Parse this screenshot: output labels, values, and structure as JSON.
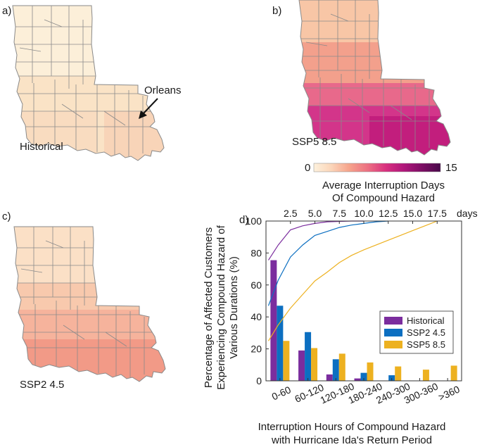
{
  "panels": {
    "a": {
      "letter": "a)",
      "scenario": "Historical",
      "annotation": "Orleans"
    },
    "b": {
      "letter": "b)",
      "scenario": "SSP5 8.5"
    },
    "c": {
      "letter": "c)",
      "scenario": "SSP2 4.5"
    },
    "d": {
      "letter": "d)"
    }
  },
  "colorbar": {
    "min_label": "0",
    "max_label": "15",
    "title_line1": "Average Interruption Days",
    "title_line2": "Of Compound Hazard",
    "colors": [
      "#fdf1dc",
      "#fbd5b9",
      "#f6a38b",
      "#ec6e82",
      "#d8307f",
      "#b0177b",
      "#7a0d63",
      "#480a4a"
    ]
  },
  "map_fills": {
    "historical": [
      "#fcefd9",
      "#fae3c6",
      "#f9dcc0",
      "#f8d4b8"
    ],
    "ssp2": [
      "#fbe0c6",
      "#f8c9ad",
      "#f6b39c",
      "#f29a87"
    ],
    "ssp5": [
      "#f8c6a6",
      "#f3a08c",
      "#e8698b",
      "#d3358a",
      "#c21e7d"
    ]
  },
  "chart_data": [
    {
      "type": "bar",
      "title": "",
      "categories": [
        "0-60",
        "60-120",
        "120-180",
        "180-240",
        "240-300",
        "300-360",
        ">360"
      ],
      "series": [
        {
          "name": "Historical",
          "color": "#7b2d9e",
          "values": [
            75.5,
            19,
            4,
            1.5,
            0,
            0,
            0
          ]
        },
        {
          "name": "SSP2 4.5",
          "color": "#0c6fc1",
          "values": [
            47,
            30.5,
            13.5,
            5,
            3.5,
            0,
            0
          ]
        },
        {
          "name": "SSP5 8.5",
          "color": "#edb120",
          "values": [
            25,
            20.5,
            17,
            11.5,
            9,
            7,
            9.5
          ]
        }
      ],
      "xlabel_line1": "Interruption Hours of Compound Hazard",
      "xlabel_line2": "with Hurricane Ida's Return Period",
      "ylabel_line1": "Percentage of Affected Customers",
      "ylabel_line2": "Experiencing Compound Hazard of",
      "ylabel_line3": "Various Durations (%)",
      "ylim": [
        0,
        100
      ],
      "yticks": [
        "0",
        "20",
        "40",
        "60",
        "80",
        "100"
      ],
      "legend": "center-right"
    },
    {
      "type": "line",
      "title": "",
      "x_top_ticks": [
        "2.5",
        "5.0",
        "7.5",
        "10.0",
        "12.5",
        "15.0",
        "17.5"
      ],
      "x_top_unit": "days",
      "xlim": [
        0,
        20
      ],
      "ylim": [
        0,
        100
      ],
      "series": [
        {
          "name": "Historical",
          "color": "#7b2d9e",
          "x": [
            0.25,
            1.25,
            2.5,
            3.75,
            5.0,
            6.25,
            7.5,
            8.75,
            10.0
          ],
          "y": [
            75.5,
            85,
            94.5,
            97,
            98.5,
            99.5,
            99.8,
            100,
            100
          ]
        },
        {
          "name": "SSP2 4.5",
          "color": "#0c6fc1",
          "x": [
            0.25,
            1.25,
            2.5,
            3.75,
            5.0,
            6.25,
            7.5,
            8.75,
            10.0,
            11.25,
            12.5
          ],
          "y": [
            47,
            63,
            77.5,
            85,
            91,
            93.5,
            96,
            97.5,
            98.5,
            99.5,
            100
          ]
        },
        {
          "name": "SSP5 8.5",
          "color": "#edb120",
          "x": [
            0.25,
            1.25,
            2.5,
            3.75,
            5.0,
            6.25,
            7.5,
            8.75,
            10.0,
            11.25,
            12.5,
            13.75,
            15.0,
            16.25,
            17.5
          ],
          "y": [
            25,
            35,
            45.5,
            54,
            62.5,
            68,
            74,
            78.5,
            82,
            85,
            88,
            91,
            94,
            97,
            100
          ]
        }
      ]
    }
  ]
}
